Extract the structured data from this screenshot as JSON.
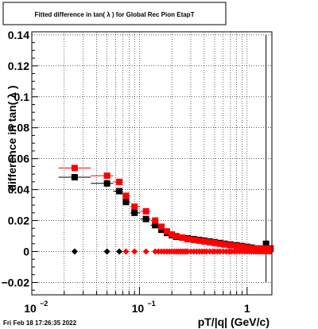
{
  "chart_data": {
    "type": "scatter",
    "title": "Fitted difference in tan( λ ) for Global Rec Pion EtapT",
    "xlabel": "pT/|q| (GeV/c)",
    "ylabel": "difference in tan( λ )",
    "x_scale": "log",
    "xlim": [
      0.01,
      1.7
    ],
    "ylim": [
      -0.028,
      0.142
    ],
    "grid": true,
    "y_ticks": [
      "−0.02",
      "0",
      "0.02",
      "0.04",
      "0.06",
      "0.08",
      "0.1",
      "0.12",
      "0.14"
    ],
    "x_ticks": [
      "10",
      "10",
      "1"
    ],
    "x_tick_exponents": [
      "−2",
      "−1"
    ],
    "series": [
      {
        "color": "#000000",
        "marker": "square",
        "x": [
          0.025,
          0.05,
          0.065,
          0.075,
          0.09,
          0.115,
          0.14,
          0.16,
          0.18,
          0.2,
          0.22,
          0.25,
          0.28,
          0.32,
          0.36,
          0.4,
          0.45,
          0.5,
          0.56,
          0.62,
          0.7,
          0.8,
          0.9,
          1.0,
          1.1,
          1.2,
          1.35,
          1.5,
          1.65
        ],
        "y": [
          0.048,
          0.044,
          0.039,
          0.032,
          0.025,
          0.021,
          0.017,
          0.014,
          0.012,
          0.0105,
          0.0095,
          0.009,
          0.0085,
          0.008,
          0.0075,
          0.007,
          0.0065,
          0.006,
          0.0055,
          0.005,
          0.0045,
          0.004,
          0.0035,
          0.003,
          0.0025,
          0.002,
          0.002,
          0.005,
          0.002
        ]
      },
      {
        "color": "#ff0000",
        "marker": "square",
        "x": [
          0.025,
          0.05,
          0.065,
          0.075,
          0.09,
          0.115,
          0.14,
          0.16,
          0.18,
          0.2,
          0.22,
          0.25,
          0.28,
          0.32,
          0.36,
          0.4,
          0.45,
          0.5,
          0.56,
          0.62,
          0.7,
          0.8,
          0.9,
          1.0,
          1.1,
          1.2,
          1.35,
          1.5,
          1.65
        ],
        "y": [
          0.054,
          0.049,
          0.045,
          0.036,
          0.029,
          0.026,
          0.02,
          0.016,
          0.013,
          0.011,
          0.01,
          0.009,
          0.008,
          0.0075,
          0.007,
          0.0065,
          0.006,
          0.0055,
          0.005,
          0.0045,
          0.004,
          0.0035,
          0.003,
          0.0025,
          0.002,
          0.002,
          0.002,
          0.002,
          0.002
        ]
      },
      {
        "color": "#000000",
        "marker": "diamond",
        "x": [
          0.025,
          0.05,
          0.065
        ],
        "y": [
          0.0,
          0.0,
          0.0
        ]
      },
      {
        "color": "#ff0000",
        "marker": "diamond",
        "x": [
          0.075,
          0.09,
          0.115,
          0.14,
          0.15,
          0.16,
          0.17,
          0.18,
          0.19,
          0.2,
          0.21,
          0.22,
          0.23,
          0.24,
          0.25,
          0.26,
          0.27,
          0.28,
          0.3,
          0.32,
          0.34,
          0.36,
          0.38,
          0.4,
          0.42,
          0.45,
          0.48,
          0.5,
          0.53,
          0.56,
          0.6,
          0.64,
          0.68,
          0.72,
          0.76,
          0.8,
          0.85,
          0.9,
          0.95,
          1.0,
          1.05,
          1.1,
          1.15,
          1.2,
          1.25,
          1.3,
          1.35,
          1.4,
          1.45,
          1.5,
          1.55,
          1.6,
          1.65
        ],
        "y": [
          0.0,
          0.0,
          0.0,
          0.0,
          0.0,
          0.0,
          0.0,
          0.0,
          0.0,
          0.0,
          0.0,
          0.0,
          0.0,
          0.0,
          0.0,
          0.0,
          0.0,
          0.0,
          0.0,
          0.0,
          0.0,
          0.0,
          0.0,
          0.0,
          0.0,
          0.0,
          0.0,
          0.0,
          0.0,
          0.0,
          0.0,
          0.0,
          0.0,
          0.0,
          0.0,
          0.0,
          0.0,
          0.0,
          0.0,
          0.0,
          0.0,
          0.0,
          0.0,
          0.0,
          0.0,
          0.0,
          0.0,
          0.0,
          0.0,
          0.0,
          0.0,
          0.0,
          0.0
        ]
      }
    ]
  },
  "timestamp": "Fri Feb 18 17:26:35 2022"
}
